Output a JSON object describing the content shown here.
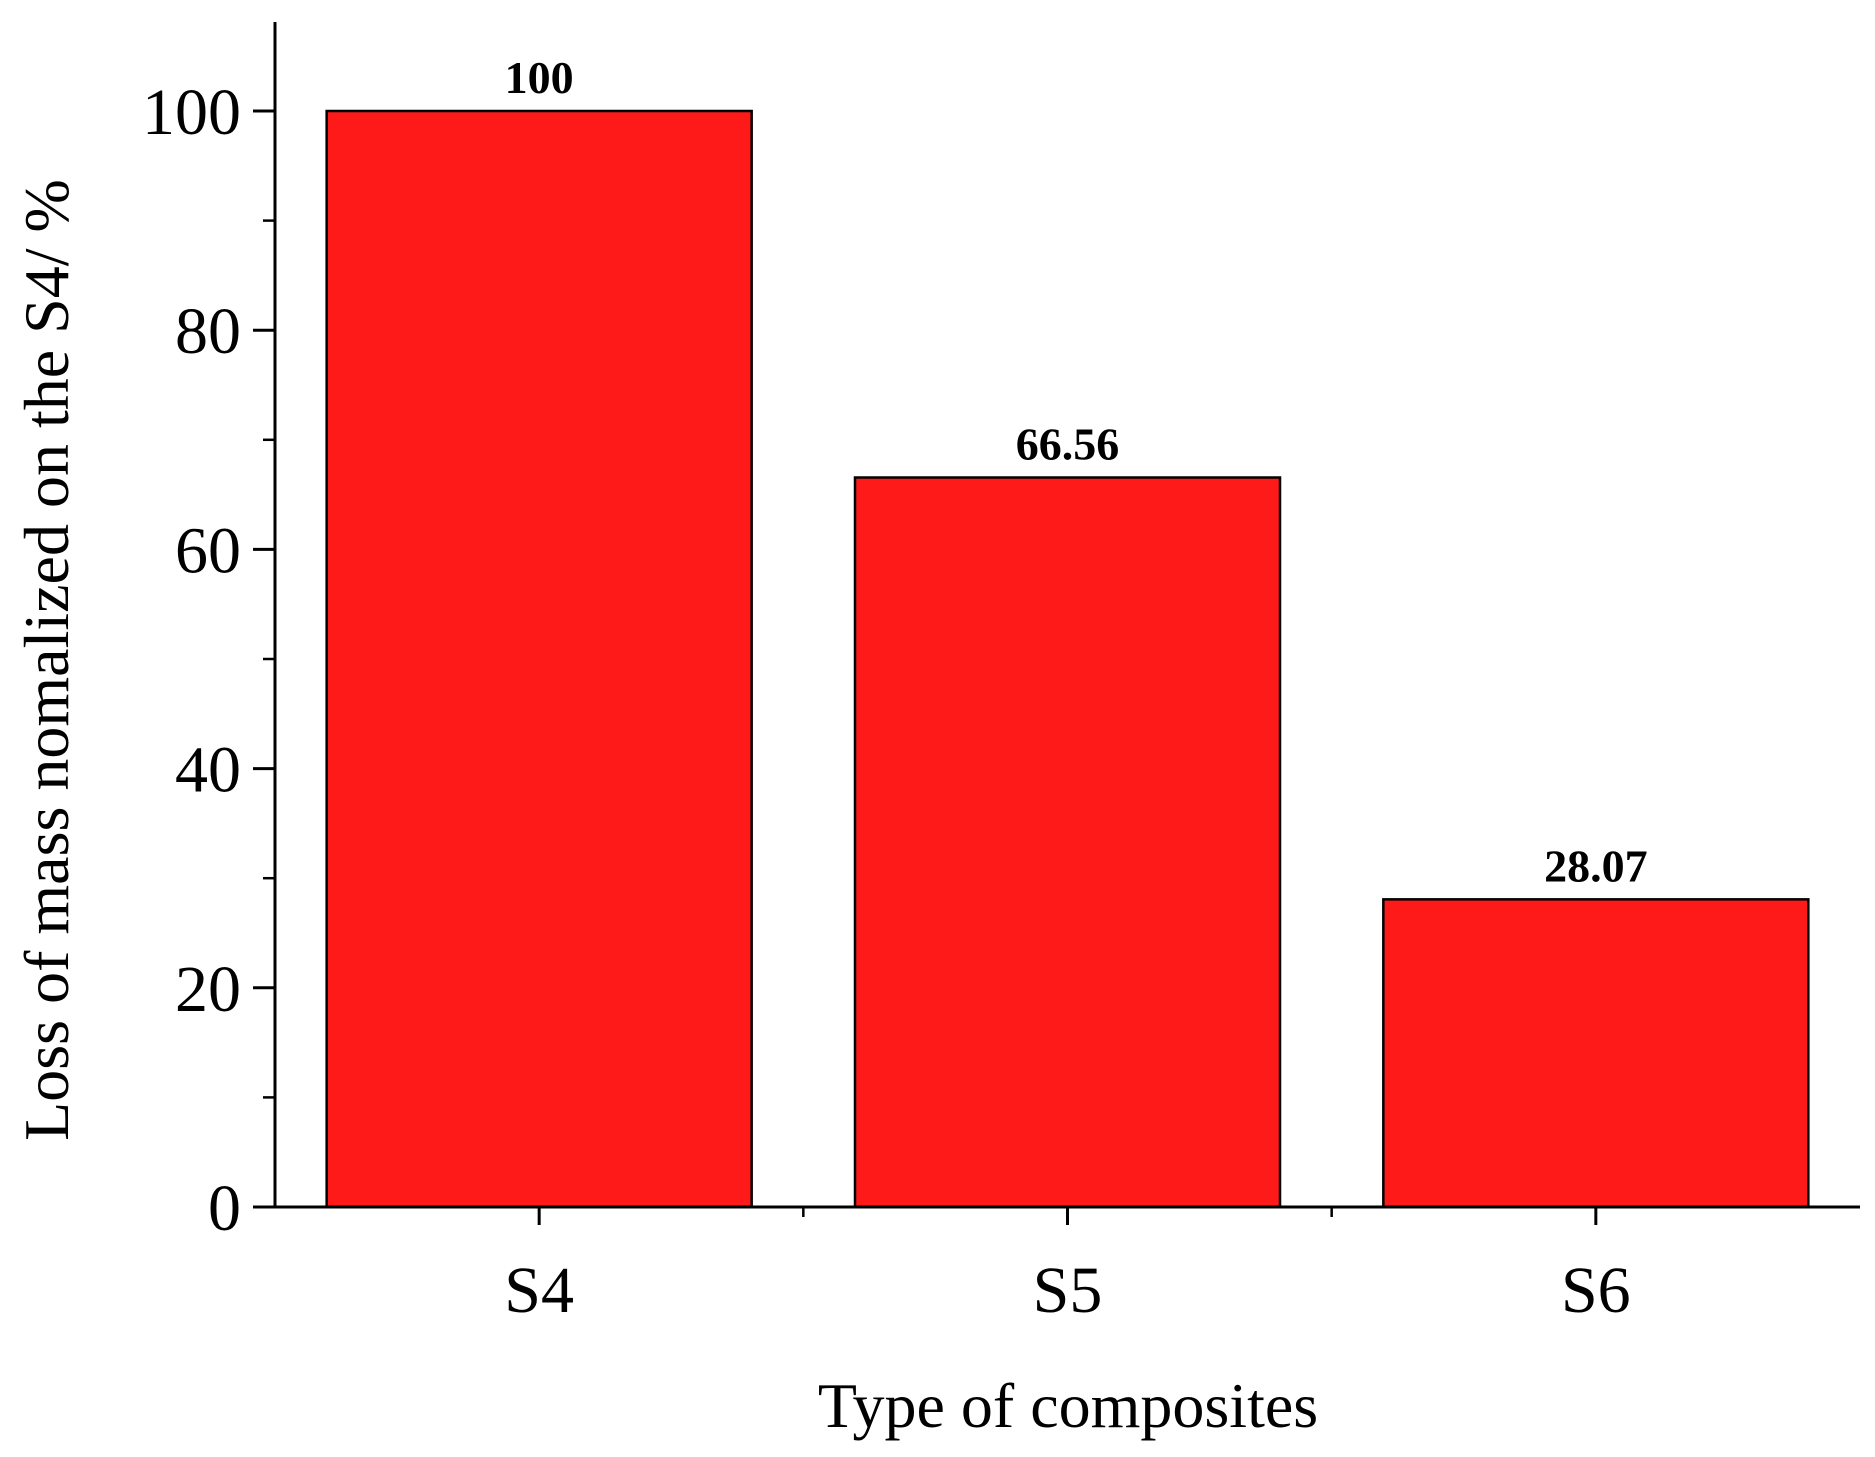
{
  "chart_data": {
    "type": "bar",
    "categories": [
      "S4",
      "S5",
      "S6"
    ],
    "values": [
      100,
      66.56,
      28.07
    ],
    "data_labels": [
      "100",
      "66.56",
      "28.07"
    ],
    "title": "",
    "xlabel": "Type of composites",
    "ylabel": "Loss of mass nomalized on the S4/ %",
    "ylim": [
      0,
      108
    ],
    "yticks": [
      0,
      20,
      40,
      60,
      80,
      100
    ],
    "ytick_labels": [
      "0",
      "20",
      "40",
      "60",
      "80",
      "100"
    ],
    "minor_ticks": true,
    "grid": false,
    "legend": "none",
    "colors": {
      "bar_fill": "#ff1a1a",
      "bar_stroke": "#000000",
      "axis": "#000000"
    }
  }
}
